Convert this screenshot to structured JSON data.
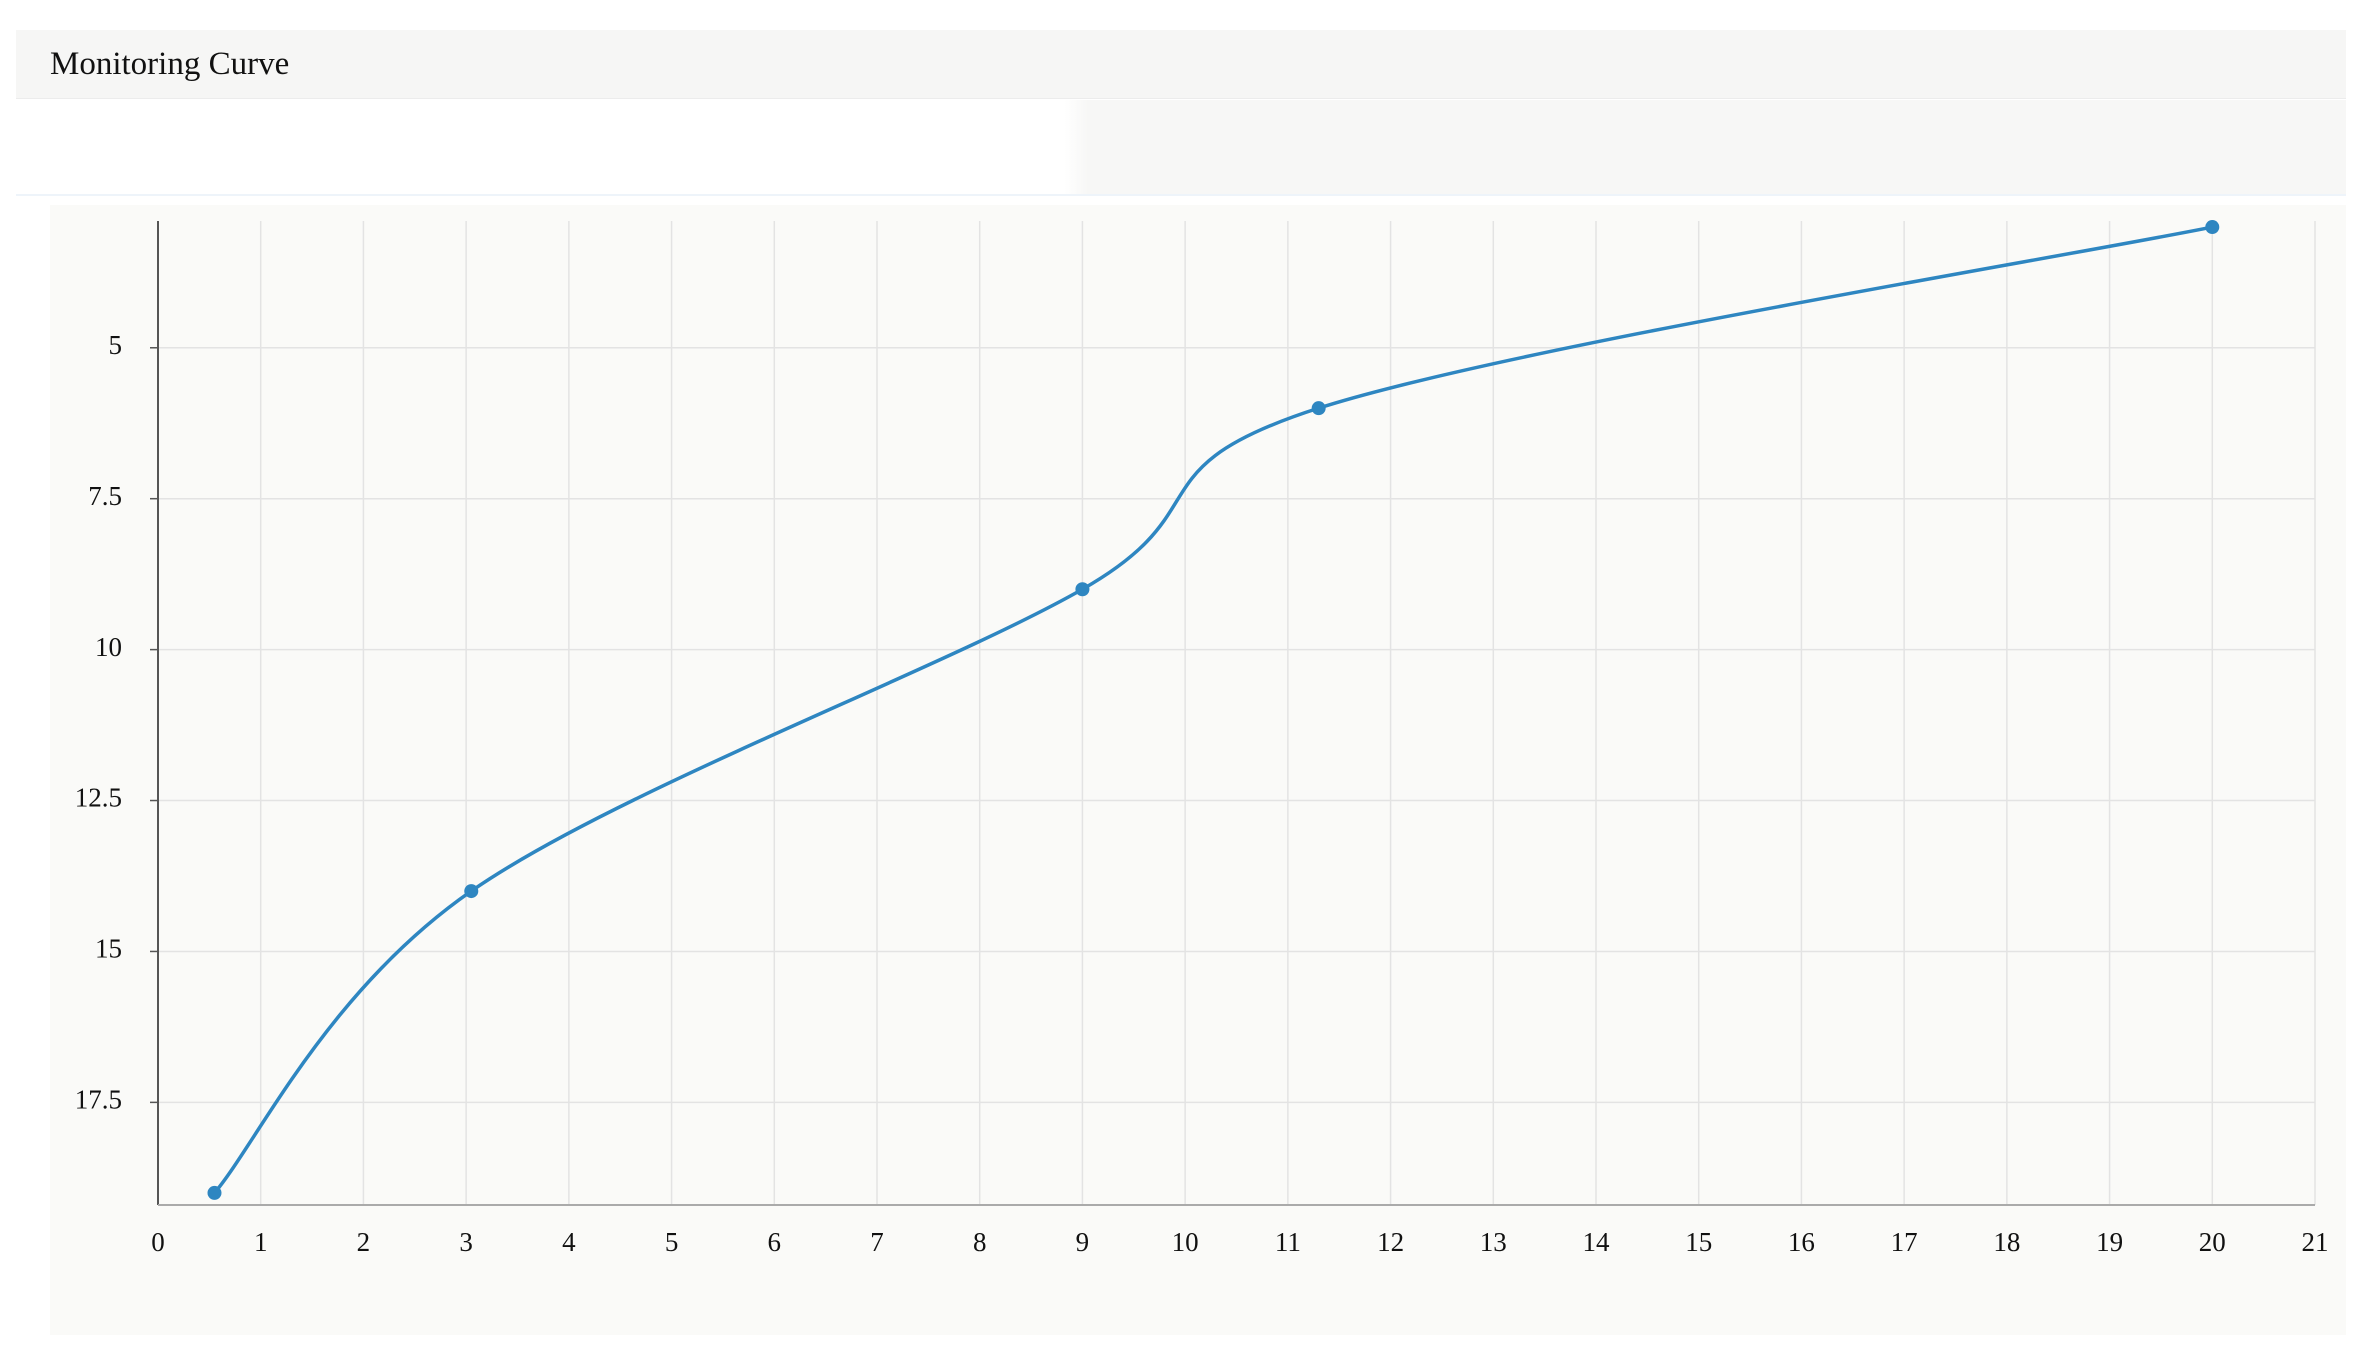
{
  "chart_data": {
    "type": "line",
    "title": "Monitoring Curve",
    "x": [
      0.55,
      3.05,
      9,
      11.3,
      20
    ],
    "values": [
      19.0,
      14.0,
      9.0,
      6.0,
      3.0
    ],
    "color": "#2e86c1",
    "xlim": [
      0,
      21
    ],
    "xticks": [
      0,
      1,
      2,
      3,
      4,
      5,
      6,
      7,
      8,
      9,
      10,
      11,
      12,
      13,
      14,
      15,
      16,
      17,
      18,
      19,
      20,
      21
    ],
    "ylim": [
      19.2,
      2.9
    ],
    "yticks": [
      5,
      7.5,
      10,
      12.5,
      15,
      17.5
    ],
    "grid": true
  }
}
